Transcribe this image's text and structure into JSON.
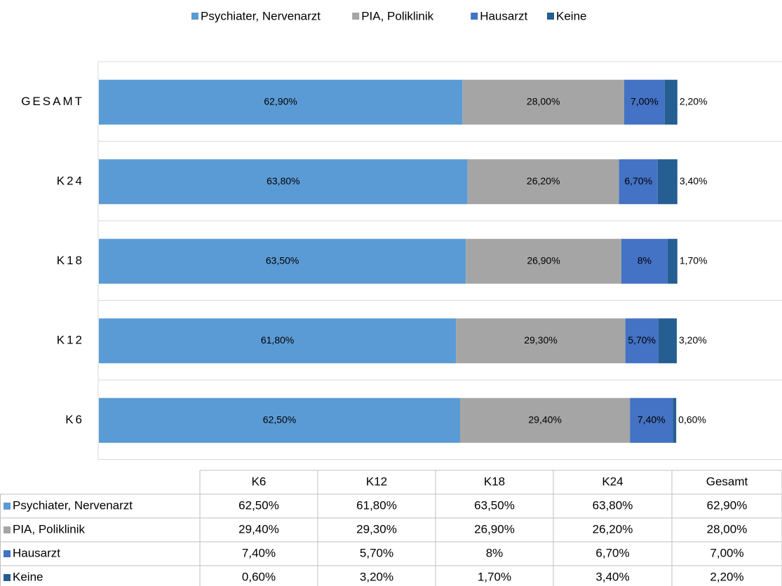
{
  "chart_data": {
    "type": "stacked_barh",
    "categories": [
      "K6",
      "K12",
      "K18",
      "K24",
      "GESAMT"
    ],
    "xlim": [
      0,
      100
    ],
    "series": [
      {
        "name": "Psychiater, Nervenarzt",
        "color": "#5b9bd5",
        "values": [
          62.5,
          61.8,
          63.5,
          63.8,
          62.9
        ],
        "value_labels": [
          "62,50%",
          "61,80%",
          "63,50%",
          "63,80%",
          "62,90%"
        ]
      },
      {
        "name": "PIA, Poliklinik",
        "color": "#a5a5a5",
        "values": [
          29.4,
          29.3,
          26.9,
          26.2,
          28.0
        ],
        "value_labels": [
          "29,40%",
          "29,30%",
          "26,90%",
          "26,20%",
          "28,00%"
        ]
      },
      {
        "name": "Hausarzt",
        "color": "#4472c4",
        "values": [
          7.4,
          5.7,
          8,
          6.7,
          7.0
        ],
        "value_labels": [
          "7,40%",
          "5,70%",
          "8%",
          "6,70%",
          "7,00%"
        ]
      },
      {
        "name": "Keine",
        "color": "#255e91",
        "values": [
          0.6,
          3.2,
          1.7,
          3.4,
          2.2
        ],
        "value_labels": [
          "0,60%",
          "3,20%",
          "1,70%",
          "3,40%",
          "2,20%"
        ]
      }
    ],
    "table_columns": [
      "K6",
      "K12",
      "K18",
      "K24",
      "Gesamt"
    ]
  }
}
